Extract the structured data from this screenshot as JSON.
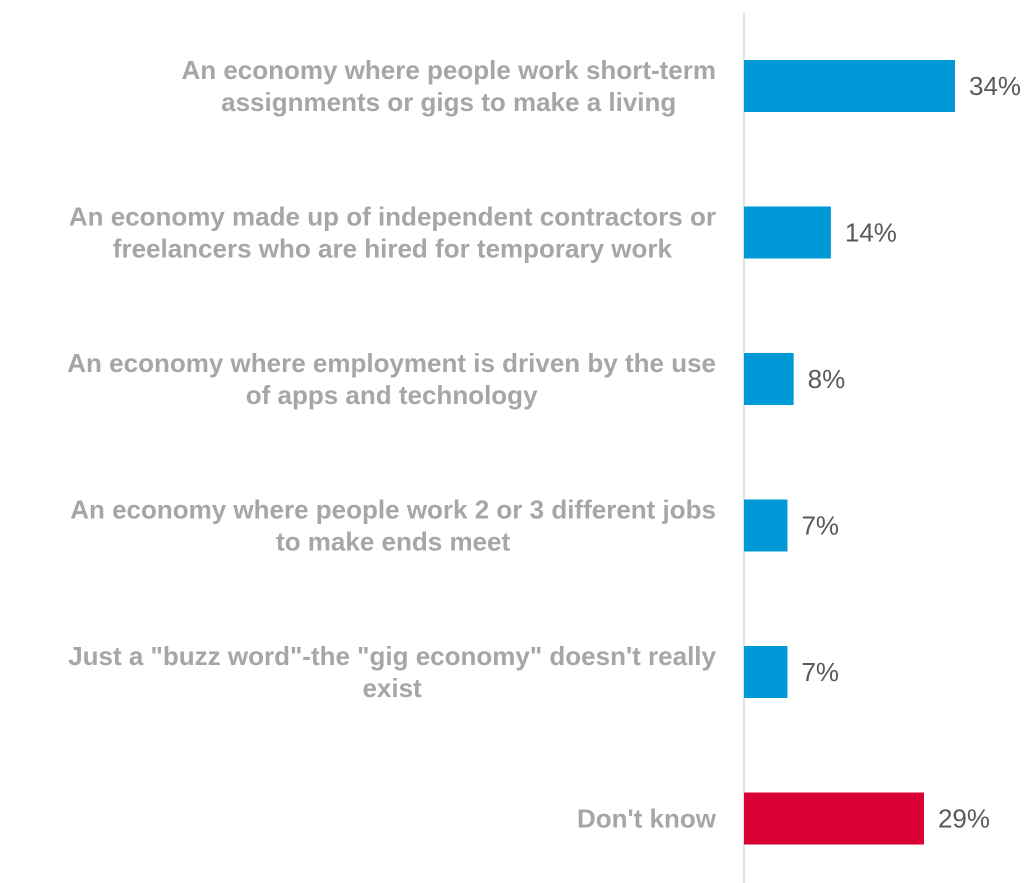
{
  "chart_data": {
    "type": "bar",
    "orientation": "horizontal",
    "categories": [
      [
        "An economy where people work short-term",
        "assignments or gigs to make a living"
      ],
      [
        "An economy made up of independent contractors or",
        "freelancers who are hired for temporary work"
      ],
      [
        "An economy where employment is driven by the use",
        "of apps and technology"
      ],
      [
        "An economy where people work 2 or 3 different jobs",
        "to make ends meet"
      ],
      [
        "Just a \"buzz word\"-the \"gig economy\" doesn't really",
        "exist"
      ],
      [
        "Don't know"
      ]
    ],
    "values": [
      34,
      14,
      8,
      7,
      7,
      29
    ],
    "value_labels": [
      "34%",
      "14%",
      "8%",
      "7%",
      "7%",
      "29%"
    ],
    "colors": [
      "#0099d8",
      "#0099d8",
      "#0099d8",
      "#0099d8",
      "#0099d8",
      "#d90036"
    ],
    "xlim": [
      0,
      40
    ],
    "grid": false,
    "legend": "none",
    "title": "",
    "xlabel": "",
    "ylabel": ""
  }
}
